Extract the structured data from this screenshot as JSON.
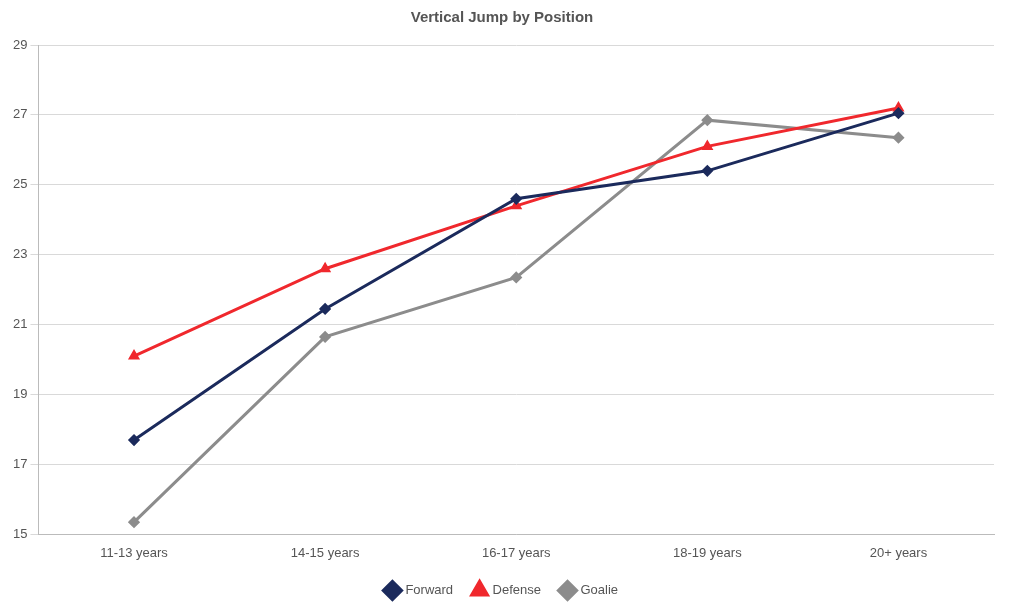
{
  "chart_data": {
    "type": "line",
    "title": "Vertical Jump by Position",
    "categories": [
      "11-13 years",
      "14-15 years",
      "16-17 years",
      "18-19 years",
      "20+ years"
    ],
    "series": [
      {
        "name": "Forward",
        "color": "#1b2a5c",
        "marker": "diamond",
        "values": [
          17.7,
          21.45,
          24.6,
          25.4,
          27.05
        ]
      },
      {
        "name": "Defense",
        "color": "#f0282d",
        "marker": "triangle",
        "values": [
          20.1,
          22.6,
          24.4,
          26.1,
          27.2
        ]
      },
      {
        "name": "Goalie",
        "color": "#8c8c8c",
        "marker": "diamond",
        "values": [
          15.35,
          20.65,
          22.35,
          26.85,
          26.35
        ]
      }
    ],
    "ylim": [
      15,
      29
    ],
    "yticks": [
      15,
      17,
      19,
      21,
      23,
      25,
      27,
      29
    ],
    "grid": true,
    "legend": "bottom"
  }
}
